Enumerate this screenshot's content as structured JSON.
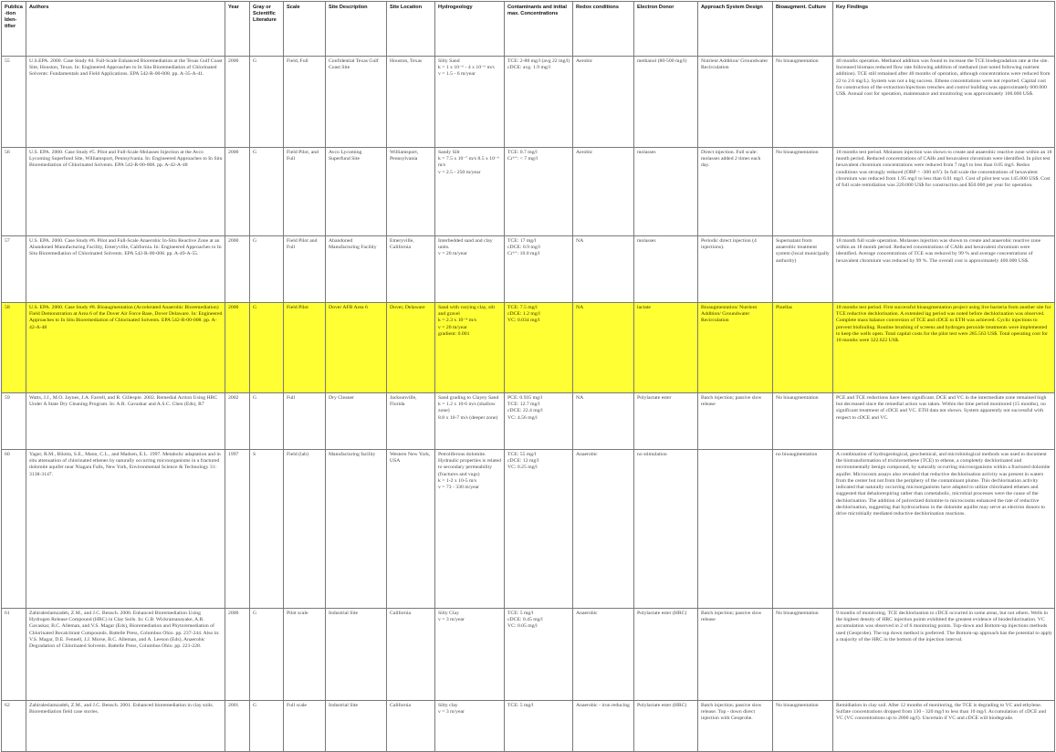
{
  "headers": [
    "Publica-tion Iden-tifier",
    "Authors",
    "Year",
    "Gray or Scientific Literature",
    "Scale",
    "Site Description",
    "Site Location",
    "Hydrogeology",
    "Contaminants and initial max. Concentrations",
    "Redox conditions",
    "Electron Donor",
    "Approach System Design",
    "Bioaugment. Culture",
    "Key Findings"
  ],
  "rows": [
    {
      "cells": [
        "55",
        "U.S.EPA. 2000. Case Study #4. Full-Scale Enhanced Bioremediation at the Texas Gulf Coast Site, Houston, Texas. In: Engineered Approaches to In Situ Bioremediation of Chlorinated Solvents: Fundamentals and Field Applications. EPA 542-R-00-008. pp. A-35-A-41.",
        "2000",
        "G",
        "Field, Full",
        "Confidential Texas Gulf Coast Site",
        "Houston, Texas",
        "Silty Sand\nk = 1 x 10⁻⁶ - 4 x 10⁻⁶ m/s\nv = 1.5 - 6 m/year",
        "TCE: 2-88 mg/l (avg 22 mg/l)\ncDCE: avg. 1.9 mg/l",
        "Aerobic",
        "methanol (80-500 mg/l)",
        "Nutrient Addition/ Groundwater Recirculation",
        "No bioaugmentation",
        "40 months operation. Methanol addition was found to increase the TCE biodegradation rate at the site. Increased biomass reduced flow rate following addition of methanol (not noted following nutrient addition). TCE still remained after 40 months of operation, although concentrations were reduced from 22 to 2.6 mg/L). System was not a big success. Ethene concentrations were not reported. Capital cost for construction of the extraction/injections trenches and control building was approximately 600.000 US$. Annual cost for operation, maintenance and monitoring was approximately 100.000 US$."
      ]
    },
    {
      "cells": [
        "56",
        "U.S. EPA. 2000. Case Study #5. Pilot and Full-Scale Molasses Injection at the Avco Lycoming Superfund Site, Williamsport, Pennsylvania. In: Engineered Approaches to In Situ Bioremediation of Chlorinated Solvents. EPA 542-R-00-008. pp. A-42-A-48",
        "2000",
        "G",
        "Field Pilot, and Full",
        "Avco Lycoming Superfund Site",
        "Williamsport, Pennsylvania",
        "Sandy Silt\nk = 7.5 x 10⁻⁷ m/s 8.5 x 10⁻⁶ m/s\nv = 2.5 - 250 m/year",
        "TCE: 0.7 mg/l\nCr⁶⁺: < 7 mg/l",
        "Aerobic",
        "molasses",
        "Direct injection. Full scale: molasses added 2 times each day.",
        "No bioaugmentation",
        "18 months test period. Molasses injection was shown to create and anaerobic reactive zone within an 18 month period. Reduced concentrations of CAHs and hexavalent chromium were identified. In pilot test hexavalent chromium concentrations were reduced from 7 mg/l to less than 0.05 mg/l. Redox conditions was strongly reduced (ORP < -300 mV). In full scale the concentrations of hexavalent chromium was reduced from 1.95 mg/l to less than 0.01 mg/l. Cost of pilot test was 145.000 US$. Cost of full scale remidiation was 220.000 US$ for construction and $50.000 per year for operation."
      ]
    },
    {
      "cells": [
        "57",
        "U.S. EPA. 2000. Case Study #6. Pilot and Full-Scale Anaerobic In-Situ Reactive Zone at an Abandoned Manufacturing Facility, Emeryville, California. In: Engineered Approaches to In Situ Bioremediation of Chlorinated Solvents. EPA 542-R-00-008. pp. A-49-A-55.",
        "2000",
        "G",
        "Field Pilot and Full",
        "Abandoned Manufacturing Facility",
        "Emeryville, California",
        "Interbedded sand and clay units.\nv = 20 m/year",
        "TCE: 17 mg/l\ncDCE: 0.9 mg/l\nCr⁶⁺: 10.0 mg/l",
        "NA",
        "molasses",
        "Periodic direct injection (4 injections).",
        "Supernatant from anaerobic treatment system (local municipally authority)",
        "18 month full scale operation. Molasses injection was shown to create and anaerobic reactive zone within an 18 month period. Reduced concentrations of CAHs and hexavalent chromium were identified. Average concentrations of TCE was reduced by 99 % and average concentrations of hexavalent chromium was reduced by 99 %. The overall cost is approximately 400.000 US$."
      ]
    },
    {
      "highlight": true,
      "cells": [
        "58",
        "U.S. EPA. 2000. Case Study #8. Bioaugmentation (Accelerated Anaerobic Bioremediation) Field Demonstration at Area 6 of the Dover Air Force Base, Dover Delaware. In: Engineered Approaches to In Situ Bioremediation of Chlorinated Solvents. EPA 542-R-00-008. pp. A-42-A-48",
        "2000",
        "G",
        "Field Pilot",
        "Dover AFB Area 6",
        "Dover, Delaware",
        "Sand with varying clay, silt and gravel\nk = 2.3 x 10⁻⁴ m/s\nv = 20 m/year\ngradient: 0.001",
        "TCE: 7.5 mg/l\ncDCE: 1.2 mg/l\nVC: 0.034 mg/l",
        "NA",
        "lactate",
        "Bioaugmentation/ Nutrient Addition/ Groundwater Recirculation",
        "Pinellas",
        "18 months test period. First successful bioaugmentation project using live bacteria from another site for TCE reductive dechlorination. A extended lag period was noted before dechlorination was observed. Complete mass balance conversion of TCE and cDCE to ETH was achieved. Cyclic injections to prevent biofouling. Routine brushing of screens and hydrogen peroxide treatments were implemented to keep the wells open. Total capital costs for the pilot test were 285.563 US$. Total operating cost for 18 months were 322.622 US$."
      ]
    },
    {
      "cells": [
        "59",
        "Watts, J.J., M.O. Jaynes, J.A. Farrell, and R. Gillespie. 2002. Remedial Action Using HRC Under A State Dry Cleaning Program. In: A.R. Gavaskar and A.S.C. Chen (Eds), R7",
        "2002",
        "G",
        "Full",
        "Dry Cleaner",
        "Jacksonville, Florida",
        "Sand grading to Clayey Sand\nk = 1.2 x 10-6 m/s (shallow zone)\n8.8 x 10-7 m/s (deeper zone)",
        "PCE: 0.935 mg/l\nTCE: 12.7 mg/l\ncDCE: 22.4 mg/l\nVC: 4.56 mg/l",
        "NA",
        "Polylactate ester",
        "Batch injection; passive slow release",
        "No bioaugmentation",
        "PCE and TCE reductions have been significant. DCE and VC in the intermediate zone remained high but decreased since the remedial action was taken. Within the time period monitored (15 months), no significant treatment of cDCE and VC. ETH data not shown. System apparently not successful with respect to cDCE and VC."
      ]
    },
    {
      "cells": [
        "60",
        "Yager, R.M., Bilotta, S.E., Mann, C.L., and Madsen, E.L. 1997. Metabolic adaptation and in situ attenuation of chlorinated ethenes by naturally occurring microorganisms in a fractured dolomite aquifer near Niagara Falls, New York, Environmental Science & Technology 31: 3138-3147.",
        "1997",
        "S",
        "Field (lab)",
        "Manufacturing facility",
        "Western New York, USA",
        "Petroliferous dolomite. Hydraulic properties is related to secondary permeability (fractures and vugs)\nk = 1-2 x 10-5 m/s\nv = 73 - 330 m/year",
        "TCE: 55 mg/l\ncDCE: 12 mg/l\nVC: 0.25 mg/l",
        "Anaerobic",
        "no stimulation",
        "",
        "no bioaugmentation",
        "A combination of hydrogeological, geochemical, and microbiological methods was used to document the biotransformation of trichloroethene (TCE) to ethene, a completely dechlorinated and environmentally benign compound, by naturally occurring microorganisms within a fractured dolomite aquifer. Microcosm assays also revealed that reductive dechlorination activity was present in waters from the center but not from the periphery of the contaminant plume. This dechlorination activity indicated that naturally occurring microorganisms have adapted to utilize chlorinated ethenes and suggested that dehalorespiring rather than cometabolic, microbial processes were the cause of the dechlorination. The addition of pulverized dolomite to microcosms enhanced the rate of reductive dechlorination, suggesting that hydrocarbons in the dolomite aquifer may serve as electron donors to drive microbially mediated reductive dechlorination reactions."
      ]
    },
    {
      "cells": [
        "61",
        "Zahiraleslamzadeh, Z.M., and J.C. Bensch. 2000. Enhanced Bioremediation Using Hydrogen Release Compound (HRC) in Clay Soils. In: G.B. Wickramanayake, A.R. Gavaskar, B.C. Alleman, and V.S. Magar (Eds), Bioremediation and Phytoremediation of Chlorinated Recalcitrant Compounds. Battelle Press, Columbus Ohio. pp. 237-244. Also in: V.S. Magar, D.E. Fennell, J.J. Morse, B.C. Alleman, and A. Leeson (Eds), Anaerobic Degradation of Chlorinated Solvents. Battelle Press, Columbus Ohio. pp. 221-228.",
        "2000",
        "G",
        "Pilot scale",
        "Industrial Site",
        "California",
        "Silty Clay\nv = 3 m/year",
        "TCE: 5 mg/l\ncDCE: 0.45 mg/l\nVC: 0.05 mg/l",
        "Anaerobic",
        "Polylactate ester (HRC)",
        "Batch injection; passive slow release",
        "No bioaugmentation",
        "9 months of monitoring. TCE dechlorination to cDCE occurred in some areas, but not others. Wells in the highest density of HRC injection points exhibited the greatest evidence of biodechlorination. VC accumulation was observed in 2 of 6 monitoring points. Top-down and Bottom-up injections methods used (Geoprobe). The top down method is preferred. The Bottom-up approach has the potential to apply a majority of the HRC in the bottom of the injection interval."
      ]
    },
    {
      "cells": [
        "62",
        "Zahiraleslamzadeh, Z.M., and J.C. Bensch. 2001. Enhanced bioremediation in clay soils. Bioremediation field case stories.",
        "2001",
        "G",
        "Full scale",
        "Industrial Site",
        "California",
        "Silty clay\nv = 3 m/year",
        "TCE: 5 mg/l",
        "Anaerobic - iron reducing",
        "Polylactate ester (HRC)",
        "Batch injection; passive slow release. Top - down direct injection with Geoprobe.",
        "No bioaugmentation",
        "Remidiation in clay soil. After 12 months of monitoring, the TCE is degrading to VC and ethylene. Sulfate concentrations dropped from 130 - 320 mg/l to less than 10 mg/l. Accumulation of cDCE and VC (VC concentrations up to 2000 ug/l). Uncertain if VC and cDCE will biodegrade."
      ]
    }
  ]
}
